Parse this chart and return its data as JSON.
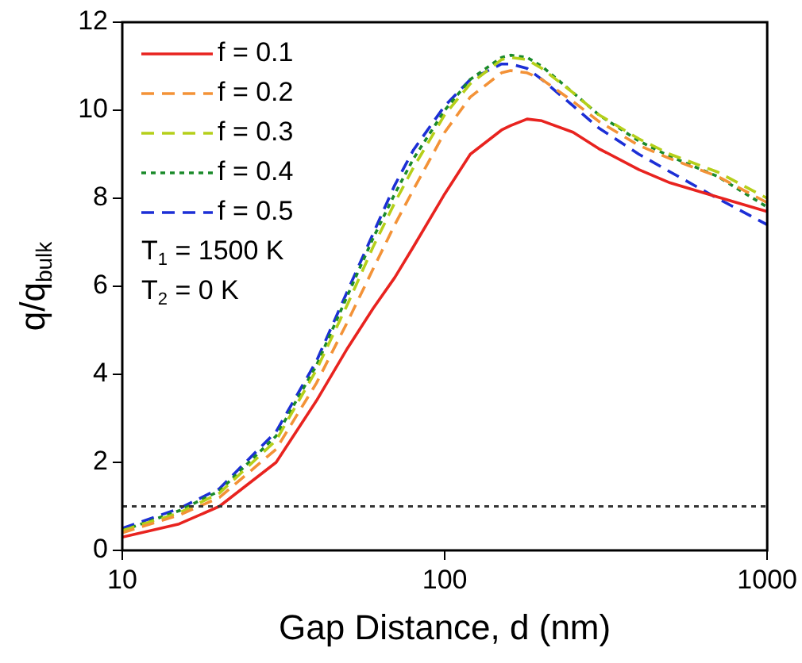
{
  "chart_data": {
    "type": "line",
    "xlabel": "Gap Distance, d (nm)",
    "ylabel": "q/q$_{bulk}$",
    "x": [
      10,
      15,
      20,
      30,
      40,
      50,
      60,
      70,
      80,
      100,
      120,
      150,
      160,
      180,
      200,
      250,
      300,
      400,
      500,
      700,
      1000
    ],
    "series": [
      {
        "name": "f = 0.1",
        "color": "#e8231f",
        "line_style": "solid",
        "values": [
          0.3,
          0.6,
          1.0,
          2.0,
          3.4,
          4.6,
          5.5,
          6.2,
          6.9,
          8.1,
          9.0,
          9.55,
          9.65,
          9.8,
          9.76,
          9.5,
          9.13,
          8.65,
          8.35,
          8.03,
          7.7
        ]
      },
      {
        "name": "f = 0.2",
        "color": "#f39237",
        "line_style": "dashed",
        "values": [
          0.4,
          0.8,
          1.2,
          2.3,
          3.8,
          5.2,
          6.4,
          7.4,
          8.2,
          9.5,
          10.3,
          10.85,
          10.9,
          10.85,
          10.7,
          10.2,
          9.75,
          9.2,
          8.9,
          8.5,
          7.9
        ]
      },
      {
        "name": "f = 0.3",
        "color": "#b5cf1a",
        "line_style": "dashed",
        "values": [
          0.45,
          0.85,
          1.3,
          2.5,
          4.1,
          5.6,
          6.9,
          7.9,
          8.7,
          9.9,
          10.6,
          11.15,
          11.2,
          11.15,
          10.95,
          10.4,
          9.9,
          9.35,
          9.0,
          8.6,
          8.0
        ]
      },
      {
        "name": "f = 0.4",
        "color": "#1a8a2a",
        "line_style": "dotted",
        "values": [
          0.45,
          0.9,
          1.35,
          2.6,
          4.2,
          5.8,
          7.1,
          8.1,
          8.9,
          10.0,
          10.7,
          11.2,
          11.25,
          11.2,
          11.0,
          10.4,
          9.9,
          9.3,
          8.95,
          8.5,
          7.8
        ]
      },
      {
        "name": "f = 0.5",
        "color": "#1c2fd6",
        "line_style": "dashed",
        "values": [
          0.5,
          0.95,
          1.4,
          2.7,
          4.3,
          5.9,
          7.2,
          8.3,
          9.1,
          10.1,
          10.7,
          11.05,
          11.05,
          10.95,
          10.7,
          10.1,
          9.6,
          9.0,
          8.6,
          8.0,
          7.4
        ]
      }
    ],
    "log": "x",
    "xlim": [
      10,
      1000
    ],
    "xticks": [
      10,
      100,
      1000
    ],
    "ylim": [
      0,
      12
    ],
    "yticks": [
      0,
      2,
      4,
      6,
      8,
      10,
      12
    ],
    "grid": false,
    "legend": "top left",
    "ref_lines": [
      {
        "axis": "y",
        "value": 1,
        "color": "#333333",
        "line_style": "dotted"
      }
    ],
    "annotations": [
      "T$_{1}$ = 1500 K",
      "T$_{2}$ = 0 K"
    ]
  }
}
